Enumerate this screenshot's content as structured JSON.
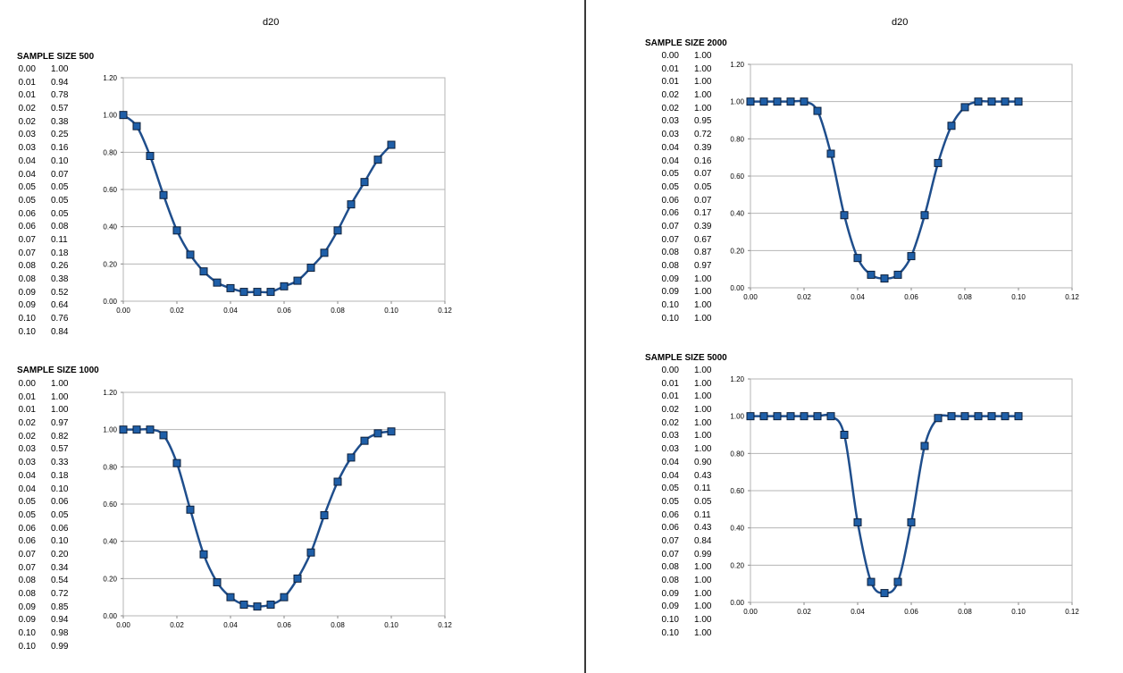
{
  "panels": [
    {
      "title": "d20"
    },
    {
      "title": "d20"
    }
  ],
  "chart_data": [
    {
      "type": "line",
      "title": "SAMPLE SIZE 500",
      "table": [
        [
          "0.00",
          "1.00"
        ],
        [
          "0.01",
          "0.94"
        ],
        [
          "0.01",
          "0.78"
        ],
        [
          "0.02",
          "0.57"
        ],
        [
          "0.02",
          "0.38"
        ],
        [
          "0.03",
          "0.25"
        ],
        [
          "0.03",
          "0.16"
        ],
        [
          "0.04",
          "0.10"
        ],
        [
          "0.04",
          "0.07"
        ],
        [
          "0.05",
          "0.05"
        ],
        [
          "0.05",
          "0.05"
        ],
        [
          "0.06",
          "0.05"
        ],
        [
          "0.06",
          "0.08"
        ],
        [
          "0.07",
          "0.11"
        ],
        [
          "0.07",
          "0.18"
        ],
        [
          "0.08",
          "0.26"
        ],
        [
          "0.08",
          "0.38"
        ],
        [
          "0.09",
          "0.52"
        ],
        [
          "0.09",
          "0.64"
        ],
        [
          "0.10",
          "0.76"
        ],
        [
          "0.10",
          "0.84"
        ]
      ],
      "x": [
        0,
        0.005,
        0.01,
        0.015,
        0.02,
        0.025,
        0.03,
        0.035,
        0.04,
        0.045,
        0.05,
        0.055,
        0.06,
        0.065,
        0.07,
        0.075,
        0.08,
        0.085,
        0.09,
        0.095,
        0.1
      ],
      "values": [
        1.0,
        0.94,
        0.78,
        0.57,
        0.38,
        0.25,
        0.16,
        0.1,
        0.07,
        0.05,
        0.05,
        0.05,
        0.08,
        0.11,
        0.18,
        0.26,
        0.38,
        0.52,
        0.64,
        0.76,
        0.84
      ],
      "xlim": [
        0,
        0.12
      ],
      "ylim": [
        0,
        1.2
      ],
      "xticks": [
        "0.00",
        "0.02",
        "0.04",
        "0.06",
        "0.08",
        "0.10",
        "0.12"
      ],
      "yticks": [
        "0.00",
        "0.20",
        "0.40",
        "0.60",
        "0.80",
        "1.00",
        "1.20"
      ],
      "grid": true,
      "marker": "square",
      "color": "#1f4e8c",
      "marker_fill": "#1f5fa8"
    },
    {
      "type": "line",
      "title": "SAMPLE SIZE 1000",
      "table": [
        [
          "0.00",
          "1.00"
        ],
        [
          "0.01",
          "1.00"
        ],
        [
          "0.01",
          "1.00"
        ],
        [
          "0.02",
          "0.97"
        ],
        [
          "0.02",
          "0.82"
        ],
        [
          "0.03",
          "0.57"
        ],
        [
          "0.03",
          "0.33"
        ],
        [
          "0.04",
          "0.18"
        ],
        [
          "0.04",
          "0.10"
        ],
        [
          "0.05",
          "0.06"
        ],
        [
          "0.05",
          "0.05"
        ],
        [
          "0.06",
          "0.06"
        ],
        [
          "0.06",
          "0.10"
        ],
        [
          "0.07",
          "0.20"
        ],
        [
          "0.07",
          "0.34"
        ],
        [
          "0.08",
          "0.54"
        ],
        [
          "0.08",
          "0.72"
        ],
        [
          "0.09",
          "0.85"
        ],
        [
          "0.09",
          "0.94"
        ],
        [
          "0.10",
          "0.98"
        ],
        [
          "0.10",
          "0.99"
        ]
      ],
      "x": [
        0,
        0.005,
        0.01,
        0.015,
        0.02,
        0.025,
        0.03,
        0.035,
        0.04,
        0.045,
        0.05,
        0.055,
        0.06,
        0.065,
        0.07,
        0.075,
        0.08,
        0.085,
        0.09,
        0.095,
        0.1
      ],
      "values": [
        1.0,
        1.0,
        1.0,
        0.97,
        0.82,
        0.57,
        0.33,
        0.18,
        0.1,
        0.06,
        0.05,
        0.06,
        0.1,
        0.2,
        0.34,
        0.54,
        0.72,
        0.85,
        0.94,
        0.98,
        0.99
      ],
      "xlim": [
        0,
        0.12
      ],
      "ylim": [
        0,
        1.2
      ],
      "xticks": [
        "0.00",
        "0.02",
        "0.04",
        "0.06",
        "0.08",
        "0.10",
        "0.12"
      ],
      "yticks": [
        "0.00",
        "0.20",
        "0.40",
        "0.60",
        "0.80",
        "1.00",
        "1.20"
      ],
      "grid": true,
      "marker": "square",
      "color": "#1f4e8c",
      "marker_fill": "#1f5fa8"
    },
    {
      "type": "line",
      "title": "SAMPLE SIZE 2000",
      "table": [
        [
          "0.00",
          "1.00"
        ],
        [
          "0.01",
          "1.00"
        ],
        [
          "0.01",
          "1.00"
        ],
        [
          "0.02",
          "1.00"
        ],
        [
          "0.02",
          "1.00"
        ],
        [
          "0.03",
          "0.95"
        ],
        [
          "0.03",
          "0.72"
        ],
        [
          "0.04",
          "0.39"
        ],
        [
          "0.04",
          "0.16"
        ],
        [
          "0.05",
          "0.07"
        ],
        [
          "0.05",
          "0.05"
        ],
        [
          "0.06",
          "0.07"
        ],
        [
          "0.06",
          "0.17"
        ],
        [
          "0.07",
          "0.39"
        ],
        [
          "0.07",
          "0.67"
        ],
        [
          "0.08",
          "0.87"
        ],
        [
          "0.08",
          "0.97"
        ],
        [
          "0.09",
          "1.00"
        ],
        [
          "0.09",
          "1.00"
        ],
        [
          "0.10",
          "1.00"
        ],
        [
          "0.10",
          "1.00"
        ]
      ],
      "x": [
        0,
        0.005,
        0.01,
        0.015,
        0.02,
        0.025,
        0.03,
        0.035,
        0.04,
        0.045,
        0.05,
        0.055,
        0.06,
        0.065,
        0.07,
        0.075,
        0.08,
        0.085,
        0.09,
        0.095,
        0.1
      ],
      "values": [
        1.0,
        1.0,
        1.0,
        1.0,
        1.0,
        0.95,
        0.72,
        0.39,
        0.16,
        0.07,
        0.05,
        0.07,
        0.17,
        0.39,
        0.67,
        0.87,
        0.97,
        1.0,
        1.0,
        1.0,
        1.0
      ],
      "xlim": [
        0,
        0.12
      ],
      "ylim": [
        0,
        1.2
      ],
      "xticks": [
        "0.00",
        "0.02",
        "0.04",
        "0.06",
        "0.08",
        "0.10",
        "0.12"
      ],
      "yticks": [
        "0.00",
        "0.20",
        "0.40",
        "0.60",
        "0.80",
        "1.00",
        "1.20"
      ],
      "grid": true,
      "marker": "square",
      "color": "#1f4e8c",
      "marker_fill": "#1f5fa8"
    },
    {
      "type": "line",
      "title": "SAMPLE SIZE 5000",
      "table": [
        [
          "0.00",
          "1.00"
        ],
        [
          "0.01",
          "1.00"
        ],
        [
          "0.01",
          "1.00"
        ],
        [
          "0.02",
          "1.00"
        ],
        [
          "0.02",
          "1.00"
        ],
        [
          "0.03",
          "1.00"
        ],
        [
          "0.03",
          "1.00"
        ],
        [
          "0.04",
          "0.90"
        ],
        [
          "0.04",
          "0.43"
        ],
        [
          "0.05",
          "0.11"
        ],
        [
          "0.05",
          "0.05"
        ],
        [
          "0.06",
          "0.11"
        ],
        [
          "0.06",
          "0.43"
        ],
        [
          "0.07",
          "0.84"
        ],
        [
          "0.07",
          "0.99"
        ],
        [
          "0.08",
          "1.00"
        ],
        [
          "0.08",
          "1.00"
        ],
        [
          "0.09",
          "1.00"
        ],
        [
          "0.09",
          "1.00"
        ],
        [
          "0.10",
          "1.00"
        ],
        [
          "0.10",
          "1.00"
        ]
      ],
      "x": [
        0,
        0.005,
        0.01,
        0.015,
        0.02,
        0.025,
        0.03,
        0.035,
        0.04,
        0.045,
        0.05,
        0.055,
        0.06,
        0.065,
        0.07,
        0.075,
        0.08,
        0.085,
        0.09,
        0.095,
        0.1
      ],
      "values": [
        1.0,
        1.0,
        1.0,
        1.0,
        1.0,
        1.0,
        1.0,
        0.9,
        0.43,
        0.11,
        0.05,
        0.11,
        0.43,
        0.84,
        0.99,
        1.0,
        1.0,
        1.0,
        1.0,
        1.0,
        1.0
      ],
      "xlim": [
        0,
        0.12
      ],
      "ylim": [
        0,
        1.2
      ],
      "xticks": [
        "0.00",
        "0.02",
        "0.04",
        "0.06",
        "0.08",
        "0.10",
        "0.12"
      ],
      "yticks": [
        "0.00",
        "0.20",
        "0.40",
        "0.60",
        "0.80",
        "1.00",
        "1.20"
      ],
      "grid": true,
      "marker": "square",
      "color": "#1f4e8c",
      "marker_fill": "#1f5fa8"
    }
  ]
}
